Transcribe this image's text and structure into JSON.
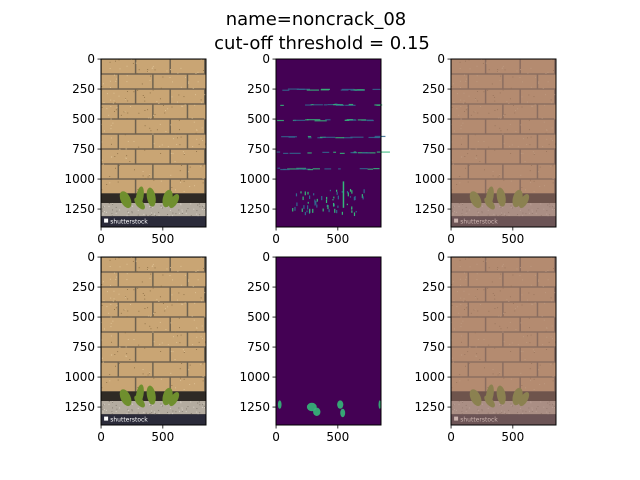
{
  "chart_data": {
    "type": "image-grid",
    "title_line1": "name=noncrack_08",
    "title_line2": "cut-off threshold = 0.15",
    "image_width": 850,
    "image_height": 1400,
    "yticks": [
      0,
      250,
      500,
      750,
      1000,
      1250
    ],
    "xticks": [
      0,
      500
    ],
    "watermark_text": "shutterstock",
    "panels": [
      {
        "row": 0,
        "col": 0,
        "kind": "photo"
      },
      {
        "row": 0,
        "col": 1,
        "kind": "heatmap"
      },
      {
        "row": 0,
        "col": 2,
        "kind": "overlay"
      },
      {
        "row": 1,
        "col": 0,
        "kind": "photo"
      },
      {
        "row": 1,
        "col": 1,
        "kind": "mask"
      },
      {
        "row": 1,
        "col": 2,
        "kind": "overlay"
      }
    ],
    "colors": {
      "brick": "#c9a574",
      "mortar": "#6e6250",
      "ground": "#b4aca0",
      "viridis_low": "#440154",
      "viridis_mid": "#31688e",
      "viridis_high": "#35b779",
      "overlay_tint": "#a2766e"
    }
  }
}
